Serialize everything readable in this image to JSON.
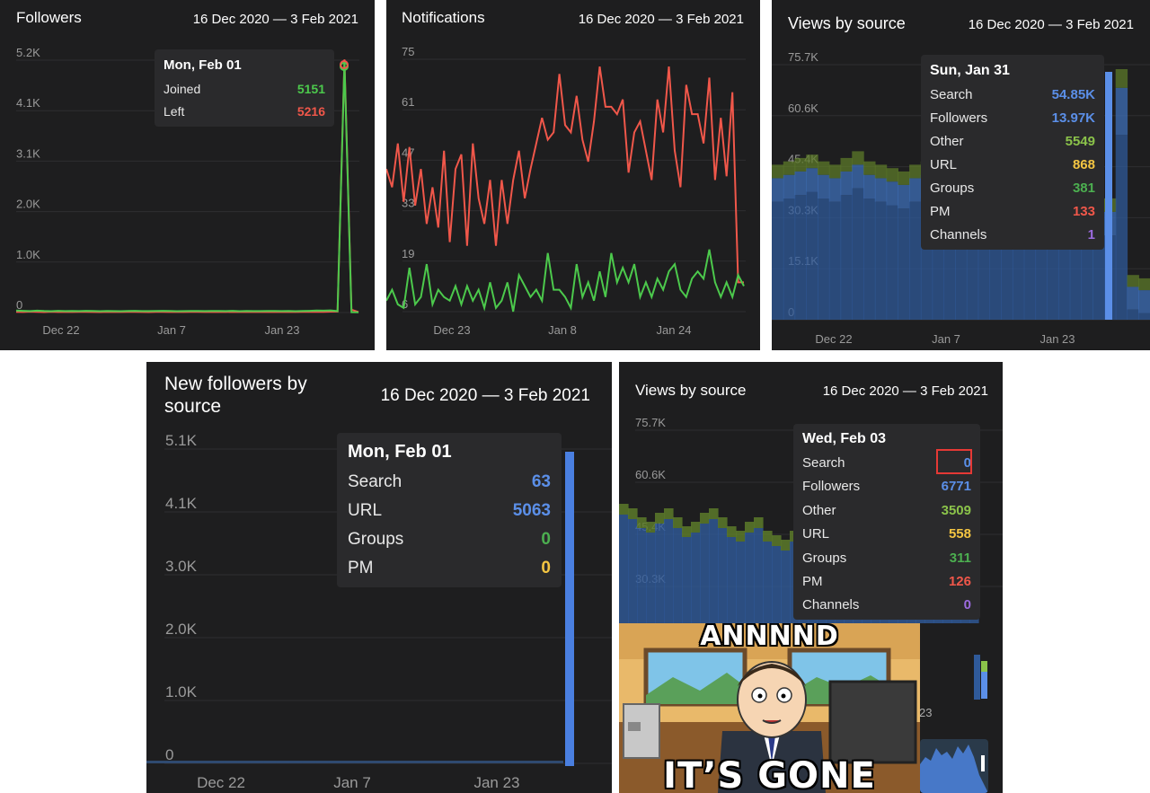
{
  "panels": {
    "p1": {
      "title": "Followers",
      "date": "16 Dec 2020 — 3 Feb 2021",
      "tooltip": {
        "title": "Mon, Feb 01",
        "rows": [
          {
            "label": "Joined",
            "value": "5151"
          },
          {
            "label": "Left",
            "value": "5216"
          }
        ]
      }
    },
    "p2": {
      "title": "Notifications",
      "date": "16 Dec 2020 — 3 Feb 2021"
    },
    "p3": {
      "title": "Views by source",
      "date": "16 Dec 2020 — 3 Feb 2021",
      "tooltip": {
        "title": "Sun, Jan 31",
        "rows": [
          {
            "label": "Search",
            "value": "54.85K"
          },
          {
            "label": "Followers",
            "value": "13.97K"
          },
          {
            "label": "Other",
            "value": "5549"
          },
          {
            "label": "URL",
            "value": "868"
          },
          {
            "label": "Groups",
            "value": "381"
          },
          {
            "label": "PM",
            "value": "133"
          },
          {
            "label": "Channels",
            "value": "1"
          }
        ]
      }
    },
    "p4": {
      "title_line1": "New followers by",
      "title_line2": "source",
      "date": "16 Dec 2020 — 3 Feb 2021",
      "tooltip": {
        "title": "Mon, Feb 01",
        "rows": [
          {
            "label": "Search",
            "value": "63"
          },
          {
            "label": "URL",
            "value": "5063"
          },
          {
            "label": "Groups",
            "value": "0"
          },
          {
            "label": "PM",
            "value": "0"
          }
        ]
      }
    },
    "p5": {
      "title": "Views by source",
      "date": "16 Dec 2020 — 3 Feb 2021",
      "tooltip": {
        "title": "Wed, Feb 03",
        "rows": [
          {
            "label": "Search",
            "value": "0"
          },
          {
            "label": "Followers",
            "value": "6771"
          },
          {
            "label": "Other",
            "value": "3509"
          },
          {
            "label": "URL",
            "value": "558"
          },
          {
            "label": "Groups",
            "value": "311"
          },
          {
            "label": "PM",
            "value": "126"
          },
          {
            "label": "Channels",
            "value": "0"
          }
        ]
      },
      "partial_tick": "23"
    }
  },
  "meme": {
    "top_text": "ANNNND",
    "bottom_text": "IT’S GONE"
  },
  "colors": {
    "search": "#4a7fd6",
    "followers": "#5b8fe8",
    "other": "#8bc34a",
    "url": "#f4c542",
    "groups": "#4caf50",
    "pm": "#f0574a",
    "channels": "#9c6bdf",
    "joined": "#4cc94c",
    "left": "#f0574a",
    "highlight_box": "#e53935"
  },
  "chart_data": [
    {
      "type": "line",
      "title": "Followers",
      "x_tick_labels": [
        "Dec 22",
        "Jan 7",
        "Jan 23"
      ],
      "y_tick_labels": [
        "0",
        "1.0K",
        "2.0K",
        "3.1K",
        "4.1K",
        "5.2K"
      ],
      "ylim": [
        0,
        5200
      ],
      "x_range_days": [
        0,
        49
      ],
      "series": [
        {
          "name": "Joined",
          "values": [
            40,
            35,
            30,
            38,
            32,
            28,
            36,
            30,
            33,
            29,
            35,
            31,
            27,
            34,
            30,
            28,
            32,
            36,
            30,
            29,
            33,
            35,
            31,
            28,
            30,
            34,
            32,
            29,
            31,
            33,
            30,
            35,
            28,
            32,
            30,
            29,
            31,
            34,
            30,
            33,
            28,
            32,
            36,
            40,
            38,
            45,
            30,
            5151,
            8,
            5
          ]
        },
        {
          "name": "Left",
          "values": [
            15,
            12,
            18,
            14,
            10,
            16,
            12,
            14,
            11,
            13,
            15,
            12,
            10,
            14,
            12,
            11,
            13,
            15,
            12,
            10,
            13,
            14,
            12,
            11,
            12,
            14,
            13,
            11,
            12,
            13,
            12,
            14,
            11,
            13,
            12,
            11,
            12,
            14,
            12,
            13,
            11,
            13,
            15,
            16,
            15,
            18,
            20,
            5216,
            60,
            10
          ]
        }
      ]
    },
    {
      "type": "line",
      "title": "Notifications",
      "x_tick_labels": [
        "Dec 23",
        "Jan 8",
        "Jan 24"
      ],
      "y_tick_labels": [
        "6",
        "19",
        "33",
        "47",
        "61",
        "75"
      ],
      "ylim": [
        6,
        75
      ],
      "x_range_days": [
        0,
        49
      ],
      "series": [
        {
          "name": "red",
          "values": [
            45,
            40,
            52,
            36,
            51,
            35,
            45,
            30,
            40,
            29,
            50,
            25,
            45,
            49,
            24,
            52,
            37,
            30,
            42,
            24,
            42,
            30,
            42,
            50,
            37,
            45,
            52,
            59,
            53,
            55,
            71,
            57,
            55,
            65,
            53,
            47,
            58,
            73,
            62,
            62,
            60,
            64,
            44,
            55,
            58,
            50,
            42,
            64,
            55,
            73,
            50,
            40,
            68,
            60,
            60,
            52,
            70,
            42,
            59,
            43,
            66,
            14,
            14
          ]
        },
        {
          "name": "green",
          "values": [
            9,
            12,
            8,
            7,
            18,
            8,
            10,
            19,
            8,
            12,
            10,
            9,
            13,
            8,
            13,
            9,
            12,
            7,
            14,
            7,
            9,
            14,
            6,
            16,
            13,
            10,
            12,
            9,
            22,
            12,
            12,
            10,
            7,
            19,
            10,
            14,
            9,
            17,
            10,
            22,
            14,
            18,
            14,
            19,
            10,
            14,
            10,
            15,
            12,
            17,
            19,
            12,
            10,
            15,
            17,
            15,
            23,
            14,
            10,
            14,
            10,
            16,
            13
          ]
        }
      ]
    },
    {
      "type": "area",
      "title": "Views by source",
      "x_tick_labels": [
        "Dec 22",
        "Jan 7",
        "Jan 23"
      ],
      "y_tick_labels": [
        "0",
        "15.1K",
        "30.3K",
        "45.4K",
        "60.6K",
        "75.7K"
      ],
      "ylim": [
        0,
        75700
      ],
      "series": [
        {
          "name": "Search",
          "values": [
            35000,
            36000,
            37000,
            38000,
            36000,
            35000,
            37000,
            39000,
            36000,
            35000,
            34000,
            33000,
            35000,
            36000,
            34000,
            33000,
            32000,
            31000,
            30000,
            30000,
            29000,
            28000,
            28000,
            27000,
            27000,
            26000,
            26000,
            26000,
            25000,
            25000,
            54850,
            3000,
            2000
          ]
        },
        {
          "name": "Followers",
          "values": [
            7000,
            7000,
            7000,
            7000,
            7000,
            7000,
            7000,
            7000,
            7000,
            7000,
            7000,
            7000,
            7000,
            7000,
            7000,
            7000,
            7000,
            7000,
            7000,
            7000,
            7000,
            7000,
            7000,
            7000,
            7000,
            7000,
            7000,
            7000,
            7000,
            7000,
            13970,
            6771,
            6771
          ]
        },
        {
          "name": "Other",
          "values": [
            4000,
            4000,
            4000,
            4000,
            4000,
            4000,
            4000,
            4000,
            4000,
            4000,
            4000,
            4000,
            4000,
            4000,
            4000,
            4000,
            4000,
            4000,
            4000,
            4000,
            4000,
            4000,
            4000,
            4000,
            4000,
            4000,
            4000,
            4000,
            4000,
            4000,
            5549,
            3509,
            3509
          ]
        }
      ]
    },
    {
      "type": "area",
      "title": "New followers by source",
      "x_tick_labels": [
        "Dec 22",
        "Jan 7",
        "Jan 23"
      ],
      "y_tick_labels": [
        "0",
        "1.0K",
        "2.0K",
        "3.0K",
        "4.1K",
        "5.1K"
      ],
      "ylim": [
        0,
        5100
      ],
      "series": [
        {
          "name": "Search",
          "values": [
            35,
            30,
            28,
            32,
            30,
            34,
            29,
            31,
            30,
            28,
            33,
            30,
            29,
            31,
            34,
            30,
            28,
            32,
            31,
            29,
            30,
            33,
            31,
            28,
            30,
            32,
            31,
            30,
            34,
            36,
            35,
            37,
            63
          ]
        },
        {
          "name": "URL",
          "values": [
            0,
            0,
            0,
            0,
            0,
            0,
            0,
            0,
            0,
            0,
            0,
            0,
            0,
            0,
            0,
            0,
            0,
            0,
            0,
            0,
            0,
            0,
            0,
            0,
            0,
            0,
            0,
            0,
            0,
            0,
            0,
            0,
            5063
          ]
        }
      ]
    },
    {
      "type": "area",
      "title": "Views by source",
      "y_tick_labels": [
        "30.3K",
        "45.4K",
        "60.6K",
        "75.7K"
      ],
      "ylim": [
        0,
        75700
      ],
      "series": [
        {
          "name": "Search",
          "values": [
            0
          ]
        },
        {
          "name": "Followers",
          "values": [
            6771
          ]
        },
        {
          "name": "Other",
          "values": [
            3509
          ]
        },
        {
          "name": "URL",
          "values": [
            558
          ]
        },
        {
          "name": "Groups",
          "values": [
            311
          ]
        },
        {
          "name": "PM",
          "values": [
            126
          ]
        },
        {
          "name": "Channels",
          "values": [
            0
          ]
        }
      ]
    }
  ]
}
